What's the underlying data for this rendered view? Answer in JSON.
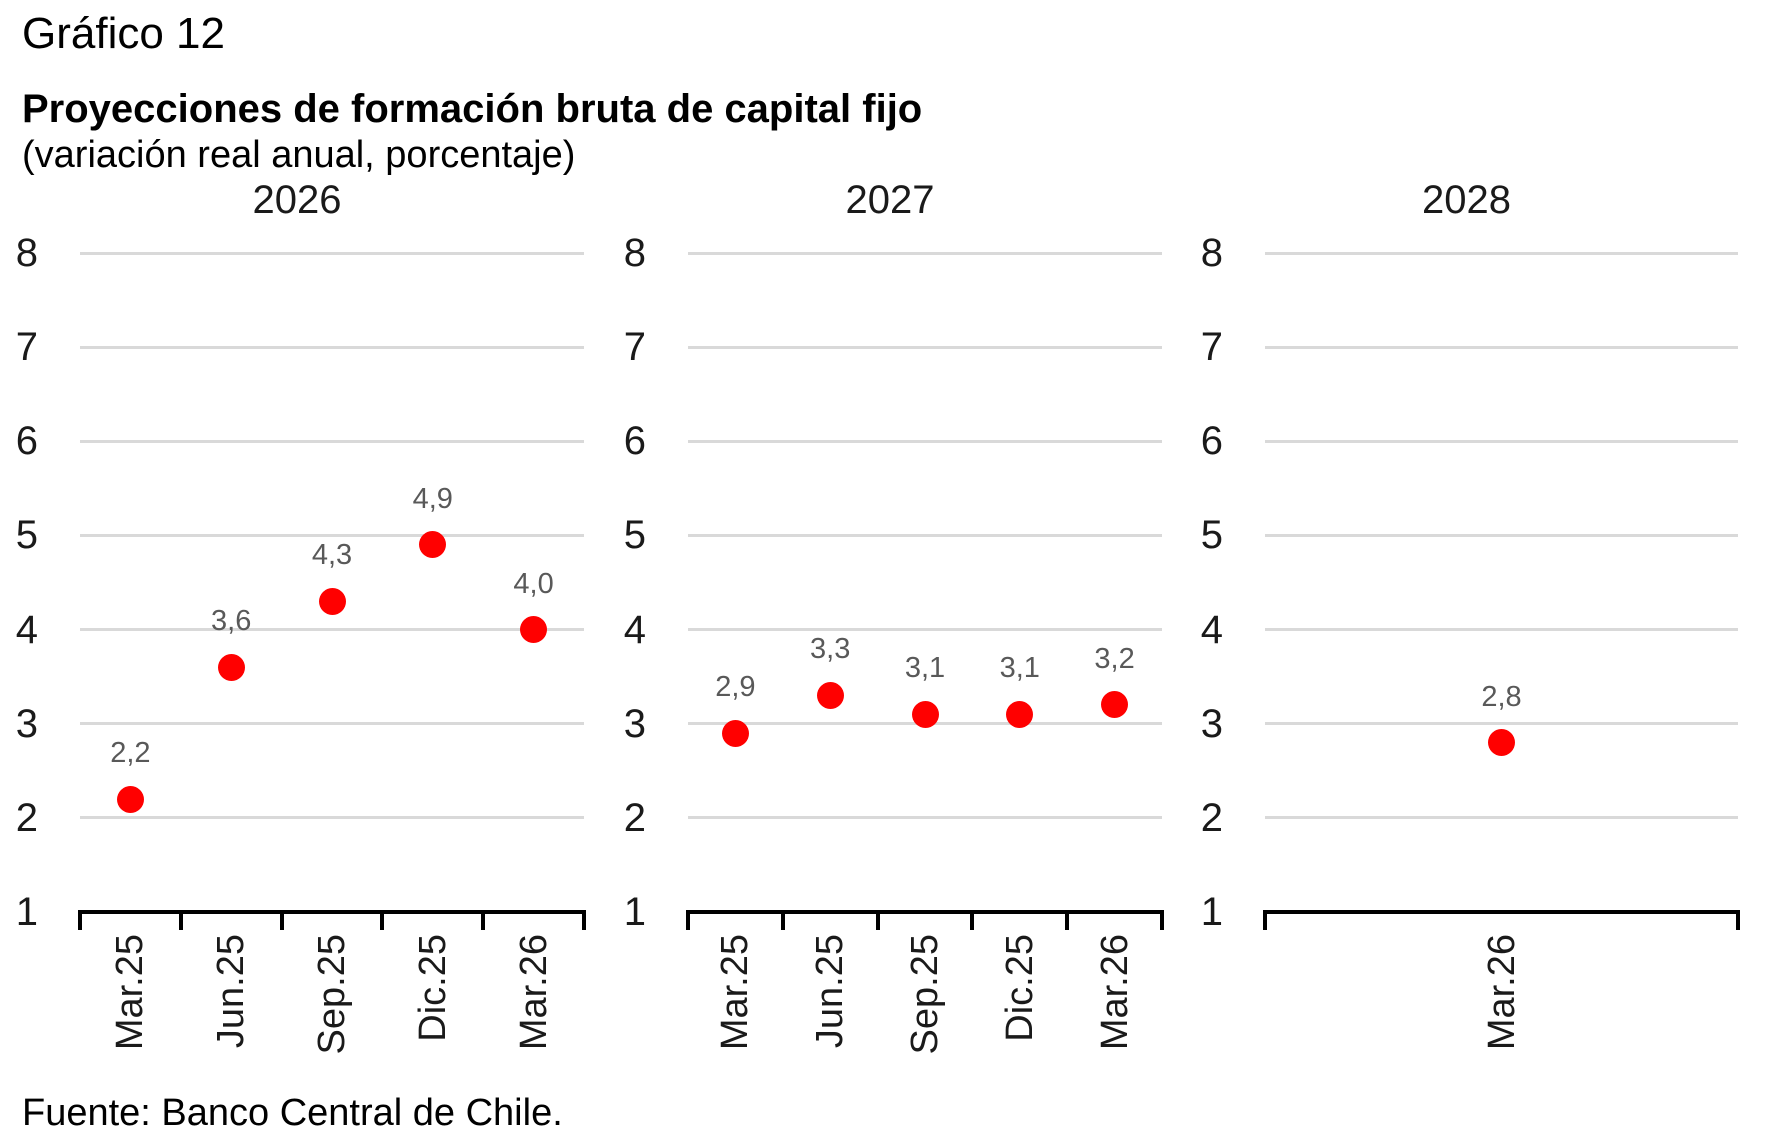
{
  "header": {
    "figure_number": "Gráfico 12",
    "title": "Proyecciones de formación bruta de capital fijo",
    "subtitle": "(variación real anual, porcentaje)"
  },
  "footer": {
    "source": "Fuente: Banco Central de Chile."
  },
  "style": {
    "marker_red": "#FF0000",
    "gridline_color": "#D9D9D9",
    "axis_color": "#000000",
    "value_label_color": "#595959",
    "text_color": "#1A1A1A"
  },
  "chart_data": [
    {
      "type": "scatter",
      "title": "2026",
      "categories": [
        "Mar.25",
        "Jun.25",
        "Sep.25",
        "Dic.25",
        "Mar.26"
      ],
      "values": [
        2.2,
        3.6,
        4.3,
        4.9,
        4.0
      ],
      "value_labels": [
        "2,2",
        "3,6",
        "4,3",
        "4,9",
        "4,0"
      ],
      "ylim": [
        1,
        8
      ],
      "yticks": [
        1,
        2,
        3,
        4,
        5,
        6,
        7,
        8
      ],
      "grid": true,
      "legend": "none",
      "marker_color": "#FF0000"
    },
    {
      "type": "scatter",
      "title": "2027",
      "categories": [
        "Mar.25",
        "Jun.25",
        "Sep.25",
        "Dic.25",
        "Mar.26"
      ],
      "values": [
        2.9,
        3.3,
        3.1,
        3.1,
        3.2
      ],
      "value_labels": [
        "2,9",
        "3,3",
        "3,1",
        "3,1",
        "3,2"
      ],
      "ylim": [
        1,
        8
      ],
      "yticks": [
        1,
        2,
        3,
        4,
        5,
        6,
        7,
        8
      ],
      "grid": true,
      "legend": "none",
      "marker_color": "#FF0000"
    },
    {
      "type": "scatter",
      "title": "2028",
      "categories": [
        "Mar.26"
      ],
      "values": [
        2.8
      ],
      "value_labels": [
        "2,8"
      ],
      "ylim": [
        1,
        8
      ],
      "yticks": [
        1,
        2,
        3,
        4,
        5,
        6,
        7,
        8
      ],
      "grid": true,
      "legend": "none",
      "marker_color": "#FF0000"
    }
  ]
}
